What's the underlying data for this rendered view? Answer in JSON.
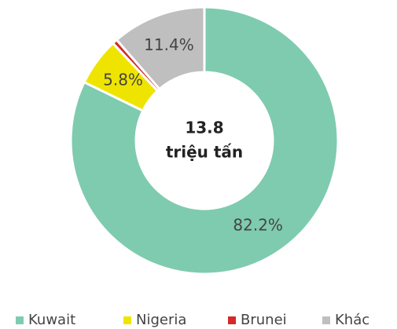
{
  "chart_data": {
    "type": "donut",
    "center_label": [
      "13.8",
      "triệu tấn"
    ],
    "categories": [
      "Kuwait",
      "Nigeria",
      "Brunei",
      "Khác"
    ],
    "values": [
      82.2,
      5.8,
      0.6,
      11.4
    ],
    "value_labels": [
      "82.2%",
      "5.8%",
      null,
      "11.4%"
    ],
    "colors": [
      "#7fcbb0",
      "#efe400",
      "#d42a2a",
      "#bfbfbf"
    ],
    "legend": "bottom"
  }
}
